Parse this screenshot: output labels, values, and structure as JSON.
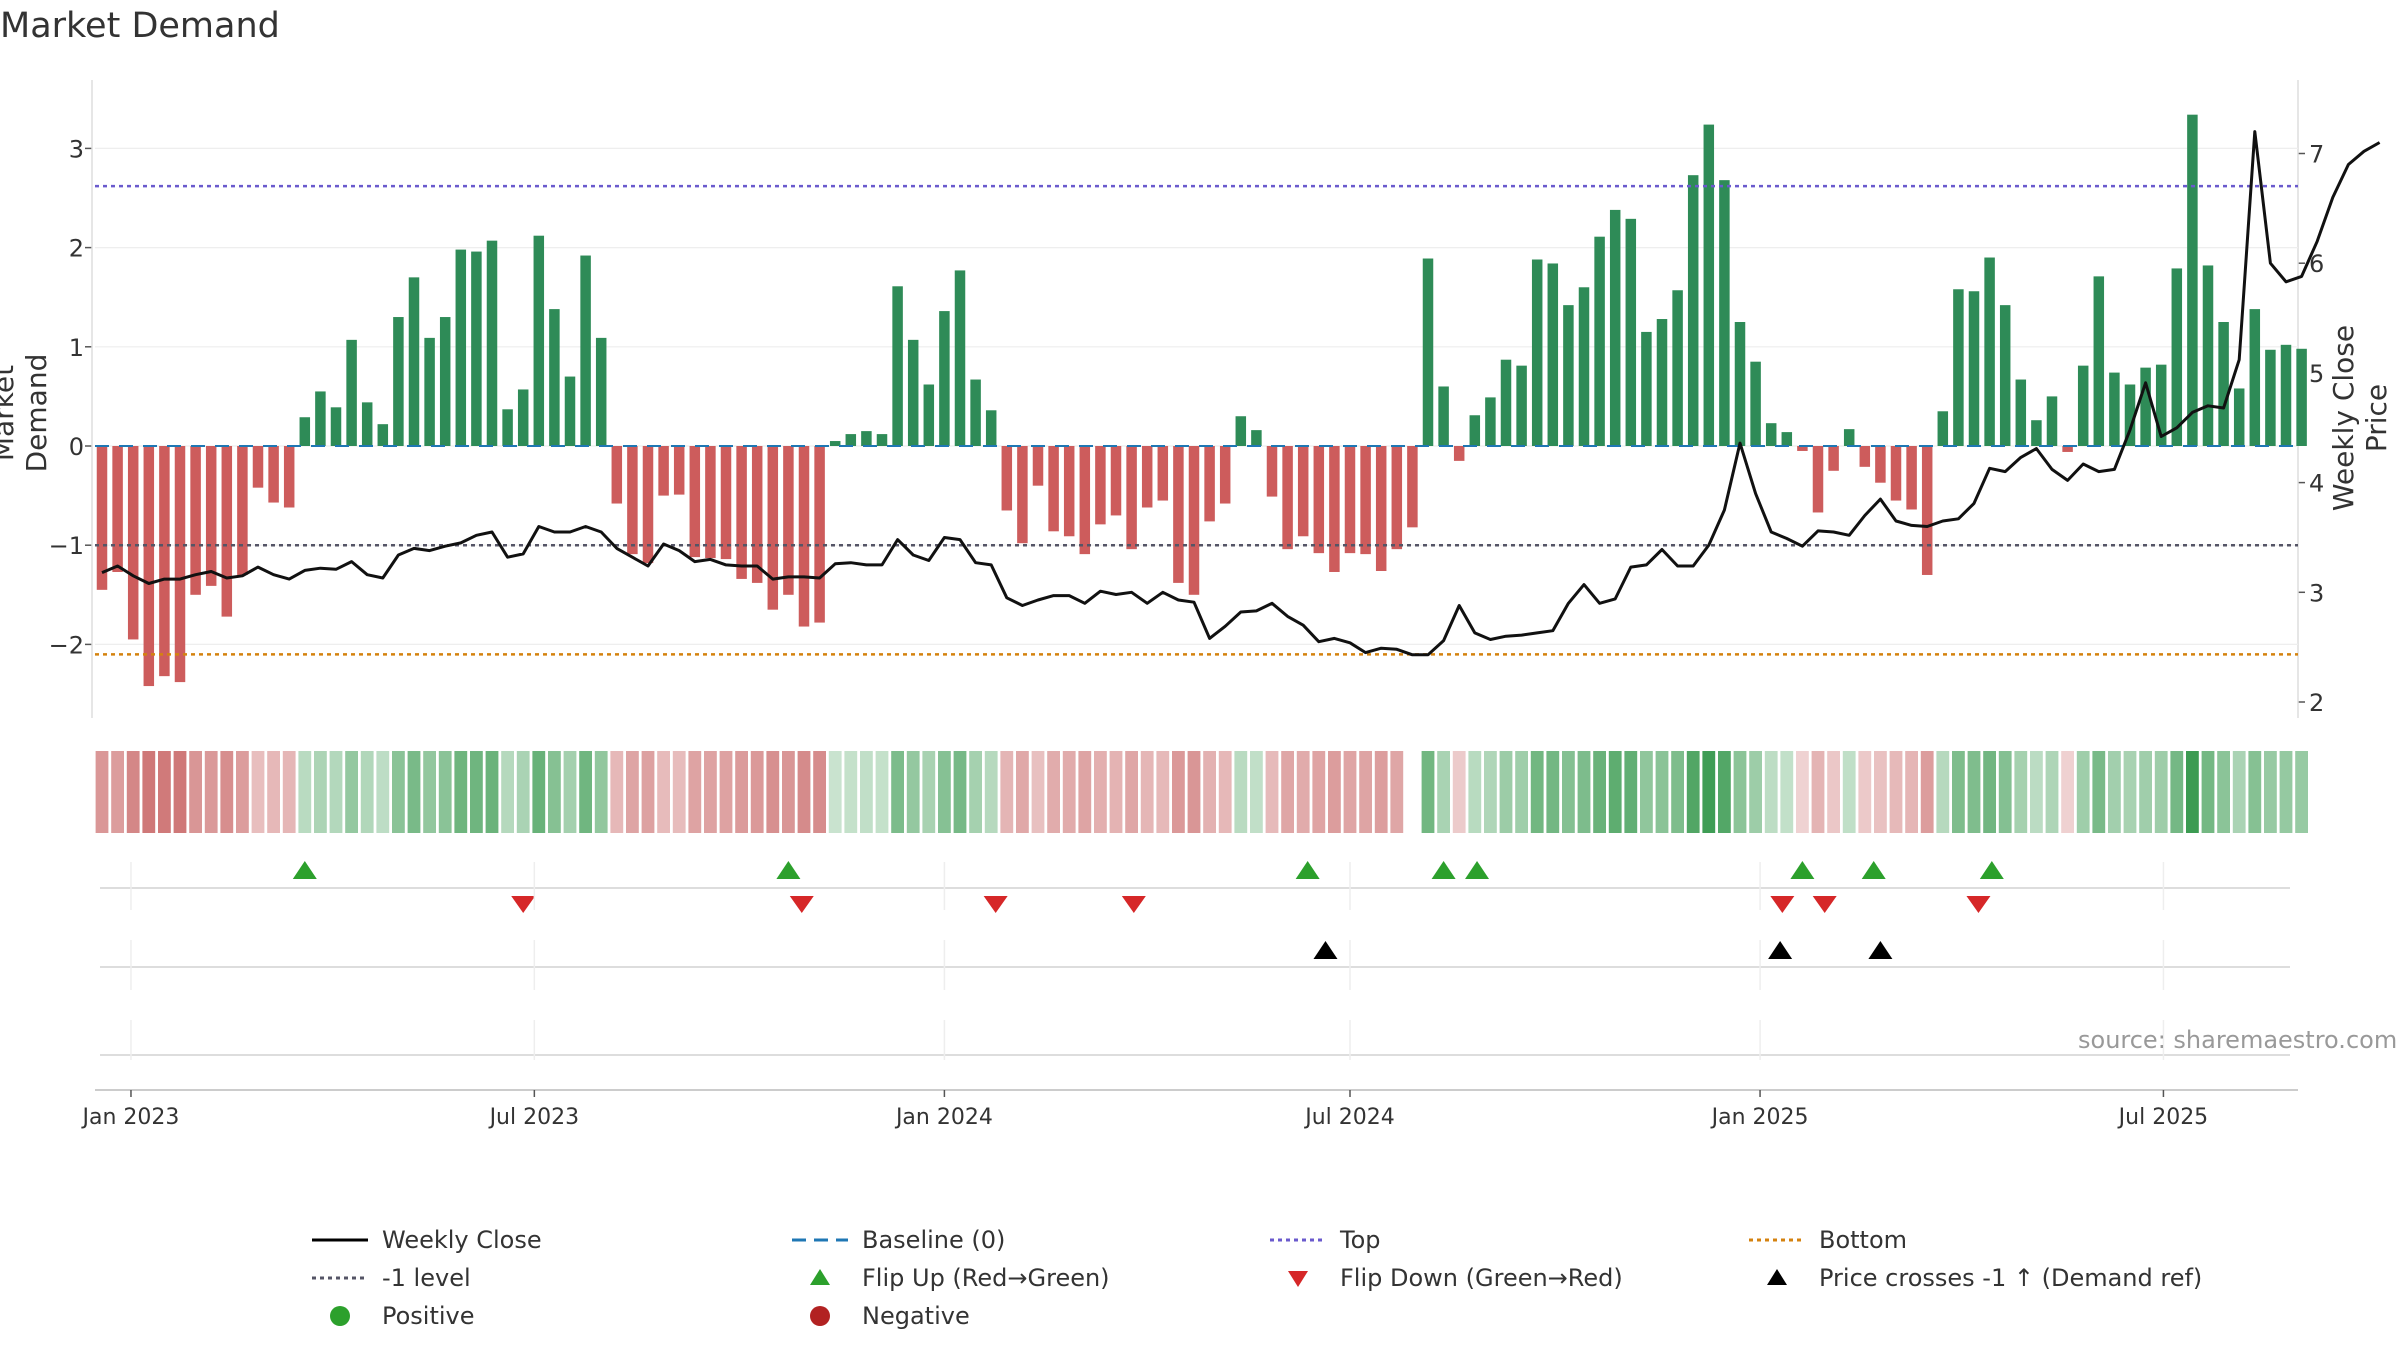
{
  "chart_data": {
    "type": "bar",
    "title": "Market Demand",
    "ylabel_left": "Market Demand",
    "ylabel_right": "Weekly Close Price",
    "ylim_left": [
      -2.75,
      3.6
    ],
    "ylim_right": [
      1.85,
      7.55
    ],
    "yticks_left": [
      3,
      2,
      1,
      0,
      -1,
      -2
    ],
    "yticks_left_labels": [
      "3",
      "2",
      "1",
      "0",
      "−1",
      "−2"
    ],
    "yticks_right": [
      7,
      6,
      5,
      4,
      3,
      2
    ],
    "yticks_right_labels": [
      "7",
      "6",
      "5",
      "4",
      "3",
      "2"
    ],
    "x_start": "2022-12-19",
    "x_step_days": 7,
    "xlim_days": [
      -1,
      139.8
    ],
    "x_ticks": [
      {
        "label": "Jan 2023",
        "days": 13
      },
      {
        "label": "Jul 2023",
        "days": 194
      },
      {
        "label": "Jan 2024",
        "days": 378
      },
      {
        "label": "Jul 2024",
        "days": 560
      },
      {
        "label": "Jan 2025",
        "days": 744
      },
      {
        "label": "Jul 2025",
        "days": 925
      }
    ],
    "levels": {
      "top": 2.62,
      "minus_one": -1.0,
      "bottom": -2.1,
      "baseline": 0
    },
    "demand": [
      -1.45,
      -1.27,
      -1.95,
      -2.42,
      -2.32,
      -2.38,
      -1.5,
      -1.41,
      -1.72,
      -1.3,
      -0.42,
      -0.57,
      -0.62,
      0.29,
      0.55,
      0.39,
      1.07,
      0.44,
      0.22,
      1.3,
      1.7,
      1.09,
      1.3,
      1.98,
      1.96,
      2.07,
      0.37,
      0.57,
      2.12,
      1.38,
      0.7,
      1.92,
      1.09,
      -0.58,
      -1.09,
      -1.18,
      -0.5,
      -0.49,
      -1.12,
      -1.13,
      -1.14,
      -1.34,
      -1.38,
      -1.65,
      -1.5,
      -1.82,
      -1.78,
      0.05,
      0.12,
      0.15,
      0.12,
      1.61,
      1.07,
      0.62,
      1.36,
      1.77,
      0.67,
      0.36,
      -0.65,
      -0.98,
      -0.4,
      -0.86,
      -0.91,
      -1.09,
      -0.79,
      -0.7,
      -1.04,
      -0.62,
      -0.55,
      -1.38,
      -1.5,
      -0.76,
      -0.58,
      0.3,
      0.16,
      -0.51,
      -1.04,
      -0.91,
      -1.08,
      -1.27,
      -1.08,
      -1.09,
      -1.26,
      -1.04,
      -0.82,
      1.89,
      0.6,
      -0.15,
      0.31,
      0.49,
      0.87,
      0.81,
      1.88,
      1.84,
      1.42,
      1.6,
      2.11,
      2.38,
      2.29,
      1.15,
      1.28,
      1.57,
      2.73,
      3.24,
      2.68,
      1.25,
      0.85,
      0.23,
      0.14,
      -0.05,
      -0.67,
      -0.25,
      0.17,
      -0.21,
      -0.37,
      -0.55,
      -0.64,
      -1.3,
      0.35,
      1.58,
      1.56,
      1.9,
      1.42,
      0.67,
      0.26,
      0.5,
      -0.06,
      0.81,
      1.71,
      0.74,
      0.62,
      0.79,
      0.82,
      1.79,
      3.34,
      1.82,
      1.25,
      0.58,
      1.38,
      0.97,
      1.02,
      0.98
    ],
    "price": [
      3.18,
      3.24,
      3.15,
      3.08,
      3.12,
      3.12,
      3.16,
      3.19,
      3.13,
      3.15,
      3.23,
      3.16,
      3.12,
      3.2,
      3.22,
      3.21,
      3.28,
      3.16,
      3.13,
      3.34,
      3.4,
      3.38,
      3.42,
      3.45,
      3.52,
      3.55,
      3.32,
      3.35,
      3.6,
      3.55,
      3.55,
      3.6,
      3.55,
      3.4,
      3.32,
      3.24,
      3.44,
      3.38,
      3.28,
      3.3,
      3.25,
      3.24,
      3.24,
      3.12,
      3.14,
      3.14,
      3.13,
      3.26,
      3.27,
      3.25,
      3.25,
      3.48,
      3.34,
      3.29,
      3.5,
      3.48,
      3.27,
      3.25,
      2.95,
      2.88,
      2.93,
      2.97,
      2.97,
      2.9,
      3.01,
      2.98,
      3.0,
      2.9,
      3.0,
      2.93,
      2.91,
      2.58,
      2.69,
      2.82,
      2.83,
      2.9,
      2.78,
      2.7,
      2.55,
      2.58,
      2.54,
      2.45,
      2.49,
      2.48,
      2.43,
      2.43,
      2.56,
      2.88,
      2.63,
      2.57,
      2.6,
      2.61,
      2.63,
      2.65,
      2.9,
      3.07,
      2.9,
      2.94,
      3.23,
      3.25,
      3.39,
      3.24,
      3.24,
      3.43,
      3.75,
      4.36,
      3.9,
      3.55,
      3.49,
      3.42,
      3.56,
      3.55,
      3.52,
      3.7,
      3.85,
      3.65,
      3.61,
      3.6,
      3.65,
      3.67,
      3.81,
      4.13,
      4.1,
      4.23,
      4.31,
      4.12,
      4.02,
      4.17,
      4.1,
      4.12,
      4.48,
      4.91,
      4.42,
      4.5,
      4.64,
      4.7,
      4.68,
      5.12,
      7.2,
      6.0,
      5.83,
      5.88,
      6.2,
      6.6,
      6.9,
      7.02,
      7.1
    ],
    "flip_up_days": [
      91,
      308,
      541,
      602,
      617,
      763,
      795,
      848
    ],
    "flip_down_days": [
      189,
      314,
      401,
      463,
      754,
      773,
      842
    ],
    "price_cross_days": [
      549,
      753,
      798
    ],
    "heat_missing_weeks": [
      84
    ],
    "legend": [
      {
        "label": "Weekly Close",
        "type": "line",
        "color": "#000000"
      },
      {
        "label": "Baseline (0)",
        "type": "dash",
        "color": "#1f77b4"
      },
      {
        "label": "Top",
        "type": "dot",
        "color": "#6a5acd"
      },
      {
        "label": "Bottom",
        "type": "dot",
        "color": "#d4820f"
      },
      {
        "label": "-1 level",
        "type": "dot",
        "color": "#555566"
      },
      {
        "label": "Flip Up (Red→Green)",
        "type": "tri-up",
        "color": "#2ca02c"
      },
      {
        "label": "Flip Down (Green→Red)",
        "type": "tri-down",
        "color": "#d62728"
      },
      {
        "label": "Price crosses -1 ↑ (Demand ref)",
        "type": "tri-up",
        "color": "#000000"
      },
      {
        "label": "Positive",
        "type": "circle",
        "color": "#2ca02c"
      },
      {
        "label": "Negative",
        "type": "circle",
        "color": "#b22222"
      }
    ],
    "colors": {
      "positive_bar": "#2e8b57",
      "negative_bar": "#cd5c5c",
      "price_line": "#111111",
      "baseline": "#1f77b4",
      "top": "#6a5acd",
      "bottom": "#d4820f",
      "minus_one": "#555566",
      "flip_up": "#2ca02c",
      "flip_down": "#d62728",
      "price_cross": "#000000",
      "heat_positive": "#3a9a50",
      "heat_negative": "#c45a5a"
    }
  },
  "source": "source: sharemaestro.com"
}
